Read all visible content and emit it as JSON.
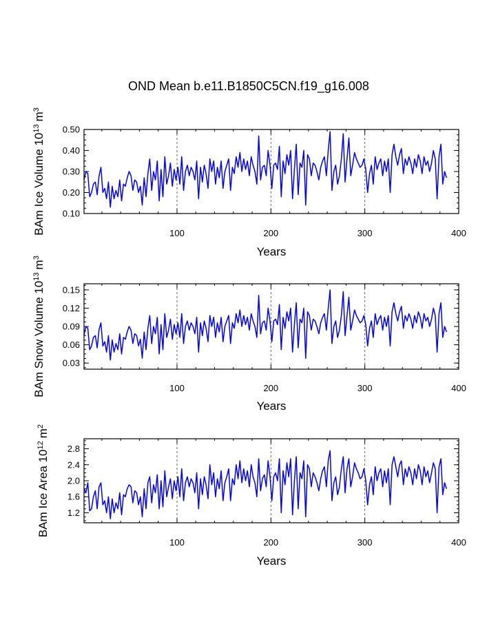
{
  "title": "OND Mean b.e11.B1850C5CN.f19_g16.008",
  "colors": {
    "series": "#0000ff",
    "reference_lines": "#555555"
  },
  "chart_data": [
    {
      "type": "line",
      "panel": "ice-volume",
      "title": "",
      "xlabel": "Years",
      "ylabel": "BAm Ice Volume",
      "ylabel_unit": "10",
      "ylabel_unit_exp1": "13",
      "ylabel_unit_sym": "m",
      "ylabel_unit_exp2": "3",
      "xlim": [
        1,
        400
      ],
      "ylim": [
        0.1,
        0.5
      ],
      "xticks": [
        100,
        200,
        300,
        400
      ],
      "xtick_labels": [
        "100",
        "200",
        "300",
        "400"
      ],
      "yticks": [
        0.1,
        0.2,
        0.3,
        0.4,
        0.5
      ],
      "ytick_labels": [
        "0.10",
        "0.20",
        "0.30",
        "0.40",
        "0.50"
      ],
      "reference_x": [
        100,
        200,
        300
      ],
      "series": [
        {
          "name": "BAm Ice Volume",
          "x_start": 1,
          "x_step": 2,
          "values": [
            0.26,
            0.3,
            0.29,
            0.18,
            0.2,
            0.24,
            0.25,
            0.19,
            0.28,
            0.32,
            0.2,
            0.22,
            0.17,
            0.25,
            0.13,
            0.23,
            0.17,
            0.21,
            0.18,
            0.26,
            0.16,
            0.24,
            0.23,
            0.27,
            0.3,
            0.28,
            0.21,
            0.26,
            0.25,
            0.2,
            0.23,
            0.14,
            0.27,
            0.18,
            0.29,
            0.36,
            0.21,
            0.3,
            0.26,
            0.35,
            0.16,
            0.31,
            0.18,
            0.37,
            0.24,
            0.28,
            0.34,
            0.23,
            0.31,
            0.26,
            0.32,
            0.24,
            0.37,
            0.21,
            0.3,
            0.33,
            0.28,
            0.32,
            0.3,
            0.26,
            0.35,
            0.17,
            0.32,
            0.25,
            0.33,
            0.29,
            0.22,
            0.36,
            0.3,
            0.35,
            0.24,
            0.32,
            0.27,
            0.35,
            0.22,
            0.3,
            0.33,
            0.36,
            0.21,
            0.32,
            0.29,
            0.37,
            0.32,
            0.39,
            0.3,
            0.36,
            0.31,
            0.35,
            0.28,
            0.37,
            0.33,
            0.3,
            0.24,
            0.47,
            0.26,
            0.32,
            0.33,
            0.28,
            0.4,
            0.33,
            0.22,
            0.33,
            0.34,
            0.31,
            0.42,
            0.18,
            0.35,
            0.29,
            0.38,
            0.33,
            0.4,
            0.17,
            0.31,
            0.43,
            0.19,
            0.34,
            0.32,
            0.4,
            0.14,
            0.38,
            0.36,
            0.28,
            0.34,
            0.33,
            0.3,
            0.26,
            0.32,
            0.35,
            0.37,
            0.28,
            0.4,
            0.49,
            0.21,
            0.3,
            0.33,
            0.24,
            0.28,
            0.36,
            0.48,
            0.25,
            0.36,
            0.46,
            0.28,
            0.33,
            0.39,
            0.36,
            0.34,
            0.32,
            0.33,
            0.36,
            0.31,
            0.2,
            0.29,
            0.33,
            0.24,
            0.37,
            0.31,
            0.34,
            0.36,
            0.28,
            0.35,
            0.3,
            0.36,
            0.2,
            0.38,
            0.43,
            0.37,
            0.33,
            0.38,
            0.41,
            0.29,
            0.36,
            0.33,
            0.37,
            0.34,
            0.29,
            0.36,
            0.32,
            0.38,
            0.35,
            0.29,
            0.37,
            0.33,
            0.35,
            0.3,
            0.34,
            0.4,
            0.36,
            0.17,
            0.37,
            0.43,
            0.24,
            0.3,
            0.27
          ]
        }
      ]
    },
    {
      "type": "line",
      "panel": "snow-volume",
      "title": "",
      "xlabel": "Years",
      "ylabel": "BAm Snow Volume",
      "ylabel_unit": "10",
      "ylabel_unit_exp1": "13",
      "ylabel_unit_sym": "m",
      "ylabel_unit_exp2": "3",
      "xlim": [
        1,
        400
      ],
      "ylim": [
        0.02,
        0.16
      ],
      "xticks": [
        100,
        200,
        300,
        400
      ],
      "xtick_labels": [
        "100",
        "200",
        "300",
        "400"
      ],
      "yticks": [
        0.03,
        0.06,
        0.09,
        0.12,
        0.15
      ],
      "ytick_labels": [
        "0.03",
        "0.06",
        "0.09",
        "0.12",
        "0.15"
      ],
      "reference_x": [
        100,
        200,
        300
      ],
      "series": [
        {
          "name": "BAm Snow Volume",
          "x_start": 1,
          "x_step": 2,
          "values": [
            0.076,
            0.09,
            0.087,
            0.052,
            0.058,
            0.072,
            0.075,
            0.055,
            0.085,
            0.096,
            0.058,
            0.065,
            0.048,
            0.075,
            0.035,
            0.068,
            0.048,
            0.062,
            0.052,
            0.078,
            0.045,
            0.072,
            0.069,
            0.081,
            0.09,
            0.084,
            0.062,
            0.078,
            0.075,
            0.058,
            0.069,
            0.038,
            0.081,
            0.052,
            0.087,
            0.108,
            0.062,
            0.09,
            0.078,
            0.105,
            0.045,
            0.093,
            0.052,
            0.111,
            0.072,
            0.084,
            0.102,
            0.069,
            0.093,
            0.078,
            0.096,
            0.072,
            0.111,
            0.062,
            0.09,
            0.099,
            0.084,
            0.096,
            0.09,
            0.078,
            0.105,
            0.048,
            0.096,
            0.075,
            0.099,
            0.087,
            0.065,
            0.108,
            0.09,
            0.105,
            0.072,
            0.096,
            0.081,
            0.105,
            0.065,
            0.09,
            0.099,
            0.108,
            0.062,
            0.096,
            0.087,
            0.111,
            0.096,
            0.117,
            0.09,
            0.108,
            0.093,
            0.105,
            0.084,
            0.111,
            0.099,
            0.09,
            0.072,
            0.141,
            0.078,
            0.096,
            0.099,
            0.084,
            0.12,
            0.099,
            0.065,
            0.099,
            0.102,
            0.093,
            0.126,
            0.052,
            0.105,
            0.087,
            0.114,
            0.099,
            0.12,
            0.048,
            0.093,
            0.129,
            0.055,
            0.102,
            0.096,
            0.12,
            0.038,
            0.114,
            0.108,
            0.084,
            0.102,
            0.099,
            0.09,
            0.078,
            0.096,
            0.105,
            0.111,
            0.084,
            0.12,
            0.15,
            0.062,
            0.09,
            0.099,
            0.072,
            0.084,
            0.108,
            0.147,
            0.075,
            0.108,
            0.138,
            0.084,
            0.099,
            0.117,
            0.108,
            0.102,
            0.096,
            0.099,
            0.108,
            0.093,
            0.058,
            0.087,
            0.099,
            0.072,
            0.111,
            0.093,
            0.102,
            0.108,
            0.084,
            0.105,
            0.09,
            0.108,
            0.058,
            0.114,
            0.129,
            0.111,
            0.099,
            0.114,
            0.123,
            0.087,
            0.108,
            0.099,
            0.111,
            0.102,
            0.087,
            0.108,
            0.096,
            0.114,
            0.105,
            0.087,
            0.111,
            0.099,
            0.105,
            0.09,
            0.102,
            0.12,
            0.108,
            0.048,
            0.111,
            0.129,
            0.072,
            0.09,
            0.081
          ]
        }
      ]
    },
    {
      "type": "line",
      "panel": "ice-area",
      "title": "",
      "xlabel": "Years",
      "ylabel": "BAm Ice Area",
      "ylabel_unit": "10",
      "ylabel_unit_exp1": "12",
      "ylabel_unit_sym": "m",
      "ylabel_unit_exp2": "2",
      "xlim": [
        1,
        400
      ],
      "ylim": [
        0.95,
        3.05
      ],
      "xticks": [
        100,
        200,
        300,
        400
      ],
      "xtick_labels": [
        "100",
        "200",
        "300",
        "400"
      ],
      "yticks": [
        1.2,
        1.6,
        2.0,
        2.4,
        2.8
      ],
      "ytick_labels": [
        "1.2",
        "1.6",
        "2.0",
        "2.4",
        "2.8"
      ],
      "reference_x": [
        100,
        200,
        300
      ],
      "series": [
        {
          "name": "BAm Ice Area",
          "x_start": 1,
          "x_step": 2,
          "values": [
            1.8,
            1.7,
            1.95,
            1.25,
            1.3,
            1.6,
            1.75,
            1.3,
            1.85,
            1.95,
            1.4,
            1.5,
            1.2,
            1.6,
            1.05,
            1.55,
            1.2,
            1.45,
            1.3,
            1.7,
            1.15,
            1.65,
            1.6,
            1.8,
            1.9,
            1.85,
            1.45,
            1.75,
            1.7,
            1.4,
            1.6,
            1.1,
            1.8,
            1.3,
            1.95,
            2.1,
            1.45,
            1.9,
            1.7,
            2.15,
            1.3,
            2.0,
            1.35,
            2.25,
            1.6,
            1.85,
            2.05,
            1.55,
            2.0,
            1.75,
            2.1,
            1.6,
            2.3,
            1.5,
            1.95,
            2.1,
            1.85,
            2.05,
            1.95,
            1.7,
            2.2,
            1.3,
            2.05,
            1.65,
            2.1,
            1.9,
            1.55,
            2.4,
            1.9,
            2.2,
            1.6,
            2.05,
            1.8,
            2.25,
            1.5,
            1.95,
            2.1,
            2.3,
            1.5,
            2.05,
            1.9,
            2.4,
            2.05,
            2.5,
            1.95,
            2.3,
            2.0,
            2.25,
            1.85,
            2.4,
            2.1,
            1.95,
            1.6,
            2.55,
            1.75,
            2.05,
            2.15,
            1.85,
            2.5,
            2.1,
            1.5,
            2.1,
            2.2,
            2.0,
            2.55,
            1.2,
            2.25,
            1.9,
            2.45,
            2.1,
            2.55,
            1.15,
            2.0,
            2.6,
            1.3,
            2.2,
            2.05,
            2.5,
            1.1,
            2.4,
            2.3,
            1.85,
            2.2,
            2.1,
            1.95,
            1.75,
            2.05,
            2.25,
            2.35,
            1.85,
            2.5,
            2.75,
            1.5,
            1.95,
            2.1,
            1.65,
            1.85,
            2.3,
            2.6,
            1.7,
            2.3,
            2.55,
            1.85,
            2.1,
            2.45,
            2.3,
            2.2,
            2.05,
            2.1,
            2.3,
            2.0,
            1.4,
            1.9,
            2.1,
            1.65,
            2.35,
            2.0,
            2.2,
            2.3,
            1.85,
            2.25,
            1.95,
            2.3,
            1.4,
            2.4,
            2.6,
            2.35,
            2.1,
            2.4,
            2.5,
            1.9,
            2.3,
            2.1,
            2.35,
            2.2,
            1.9,
            2.3,
            2.05,
            2.4,
            2.25,
            1.9,
            2.35,
            2.1,
            2.25,
            1.95,
            2.2,
            2.45,
            2.3,
            1.2,
            2.35,
            2.55,
            1.65,
            1.95,
            1.8
          ]
        }
      ]
    }
  ]
}
